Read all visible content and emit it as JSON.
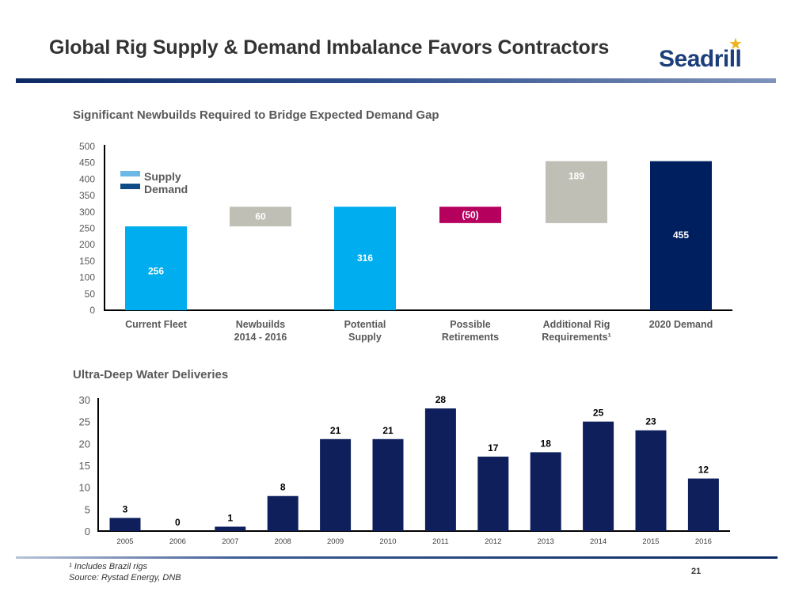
{
  "header": {
    "title": "Global Rig Supply & Demand Imbalance Favors Contractors",
    "logo_text": "Seadrill",
    "logo_star": "★"
  },
  "colors": {
    "supply": "#00adef",
    "demand": "#001f5f",
    "newbuilds": "#bfbfb5",
    "retirements": "#b5005e",
    "legend_supply": "#6cb9e5",
    "legend_demand": "#0f4b86",
    "deliveries": "#0e1f5b",
    "logo_blue": "#1c3f7c",
    "logo_star": "#f0b21b"
  },
  "chart_data": [
    {
      "type": "bar",
      "subtype": "waterfall",
      "title": "Significant Newbuilds Required to Bridge Expected Demand Gap",
      "categories": [
        "Current Fleet",
        "Newbuilds\n2014 - 2016",
        "Potential\nSupply",
        "Possible\nRetirements",
        "Additional Rig\nRequirements¹",
        "2020 Demand"
      ],
      "values": [
        256,
        60,
        316,
        -50,
        189,
        455
      ],
      "labels": [
        "256",
        "60",
        "316",
        "(50)",
        "189",
        "455"
      ],
      "bar_kind": [
        "total",
        "delta",
        "total",
        "delta",
        "delta",
        "total"
      ],
      "bar_colors": [
        "supply",
        "newbuilds",
        "supply",
        "retirements",
        "newbuilds",
        "demand"
      ],
      "legend": [
        {
          "name": "Supply",
          "color": "legend_supply"
        },
        {
          "name": "Demand",
          "color": "legend_demand"
        }
      ],
      "legend_position": "top-left",
      "ylim": [
        0,
        500
      ],
      "yticks": [
        0,
        50,
        100,
        150,
        200,
        250,
        300,
        350,
        400,
        450,
        500
      ],
      "xlabel": "",
      "ylabel": "",
      "grid": false
    },
    {
      "type": "bar",
      "title": "Ultra-Deep Water Deliveries",
      "categories": [
        "2005",
        "2006",
        "2007",
        "2008",
        "2009",
        "2010",
        "2011",
        "2012",
        "2013",
        "2014",
        "2015",
        "2016"
      ],
      "values": [
        3,
        0,
        1,
        8,
        21,
        21,
        28,
        17,
        18,
        25,
        23,
        12
      ],
      "ylim": [
        0,
        30
      ],
      "yticks": [
        0,
        5,
        10,
        15,
        20,
        25,
        30
      ],
      "xlabel": "",
      "ylabel": "",
      "grid": false
    }
  ],
  "footer": {
    "footnote": "¹ Includes Brazil rigs",
    "source": "Source: Rystad Energy, DNB",
    "page_number": "21"
  }
}
